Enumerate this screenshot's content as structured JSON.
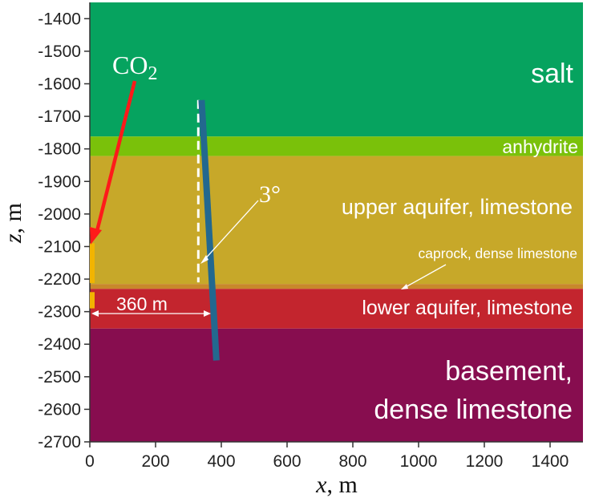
{
  "chart_data": {
    "type": "diagram",
    "xlabel": {
      "var": "x",
      "unit": "m"
    },
    "ylabel": {
      "var": "z",
      "unit": "m"
    },
    "xlim": [
      0,
      1500
    ],
    "ylim": [
      -2700,
      -1350
    ],
    "x_ticks": [
      "0",
      "200",
      "400",
      "600",
      "800",
      "1000",
      "1200",
      "1400"
    ],
    "y_ticks": [
      "-1400",
      "-1500",
      "-1600",
      "-1700",
      "-1800",
      "-1900",
      "-2000",
      "-2100",
      "-2200",
      "-2300",
      "-2400",
      "-2500",
      "-2600",
      "-2700"
    ],
    "layers": [
      {
        "label_lines": [
          "salt"
        ],
        "z_top": -1350,
        "z_bottom": -1762,
        "color": "#06a35f"
      },
      {
        "label_lines": [
          "anhydrite"
        ],
        "z_top": -1762,
        "z_bottom": -1822,
        "color": "#7ac10a"
      },
      {
        "label_lines": [
          "upper aquifer, limestone"
        ],
        "z_top": -1822,
        "z_bottom": -2215,
        "color": "#c7a829"
      },
      {
        "label_lines": [],
        "z_top": -2215,
        "z_bottom": -2230,
        "color": "#c8882b"
      },
      {
        "label_lines": [
          "lower aquifer, limestone"
        ],
        "z_top": -2230,
        "z_bottom": -2352,
        "color": "#c3252e"
      },
      {
        "label_lines": [
          "basement,",
          "dense limestone"
        ],
        "z_top": -2352,
        "z_bottom": -2700,
        "color": "#870d4f"
      }
    ],
    "caprock_label": "caprock, dense limestone",
    "fault": {
      "x_top": 340,
      "z_top": -1650,
      "x_bottom": 385,
      "z_bottom": -2450,
      "color": "#23688f"
    },
    "dip_angle_label": "3°",
    "vertical_reference": {
      "x": 330,
      "z_top": -1650,
      "z_bottom": -2210
    },
    "distance_label": "360 m",
    "distance": {
      "x_from": 0,
      "x_to": 360,
      "z": -2300
    },
    "injection": {
      "label": "CO",
      "label_sub": "2",
      "arrow_color": "#ff1a1a",
      "upper_screen": {
        "z_top": -2090,
        "z_bottom": -2212,
        "color": "#f2b400"
      },
      "lower_screen": {
        "z_top": -2240,
        "z_bottom": -2290,
        "color": "#f2b400"
      }
    }
  }
}
